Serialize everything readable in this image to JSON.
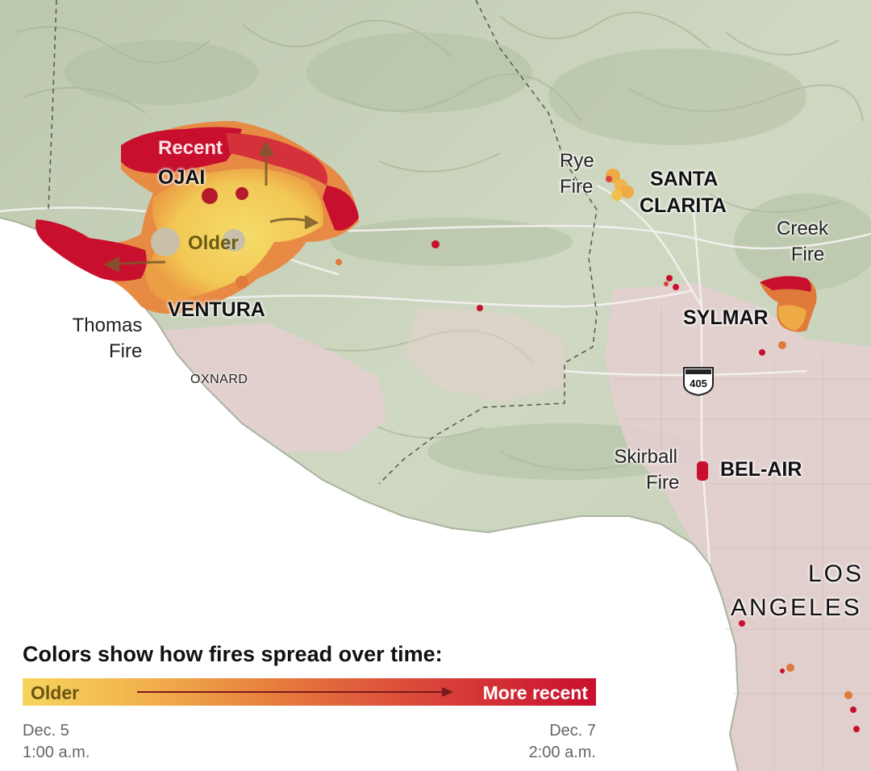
{
  "map": {
    "fires": [
      {
        "name": "thomas-fire",
        "line1": "Thomas",
        "line2": "Fire"
      },
      {
        "name": "rye-fire",
        "line1": "Rye",
        "line2": "Fire"
      },
      {
        "name": "creek-fire",
        "line1": "Creek",
        "line2": "Fire"
      },
      {
        "name": "skirball-fire",
        "line1": "Skirball",
        "line2": "Fire"
      }
    ],
    "cities": {
      "ojai": "OJAI",
      "ventura": "VENTURA",
      "oxnard": "OXNARD",
      "santa_clarita_1": "SANTA",
      "santa_clarita_2": "CLARITA",
      "sylmar": "SYLMAR",
      "bel_air": "BEL-AIR",
      "los_angeles_1": "LOS",
      "los_angeles_2": "ANGELES"
    },
    "annotations": {
      "recent": "Recent",
      "older": "Older"
    },
    "highway_shield": "405",
    "colors": {
      "older": "#f6d45e",
      "mid": "#e67a3c",
      "recent": "#c8102e",
      "terrain": "#c9d3bd",
      "urban": "#e8d3d3",
      "ocean": "#ffffff"
    }
  },
  "legend": {
    "title": "Colors show how fires spread over time:",
    "older": "Older",
    "recent": "More recent",
    "start_date": "Dec. 5",
    "start_time": "1:00 a.m.",
    "end_date": "Dec. 7",
    "end_time": "2:00 a.m."
  }
}
